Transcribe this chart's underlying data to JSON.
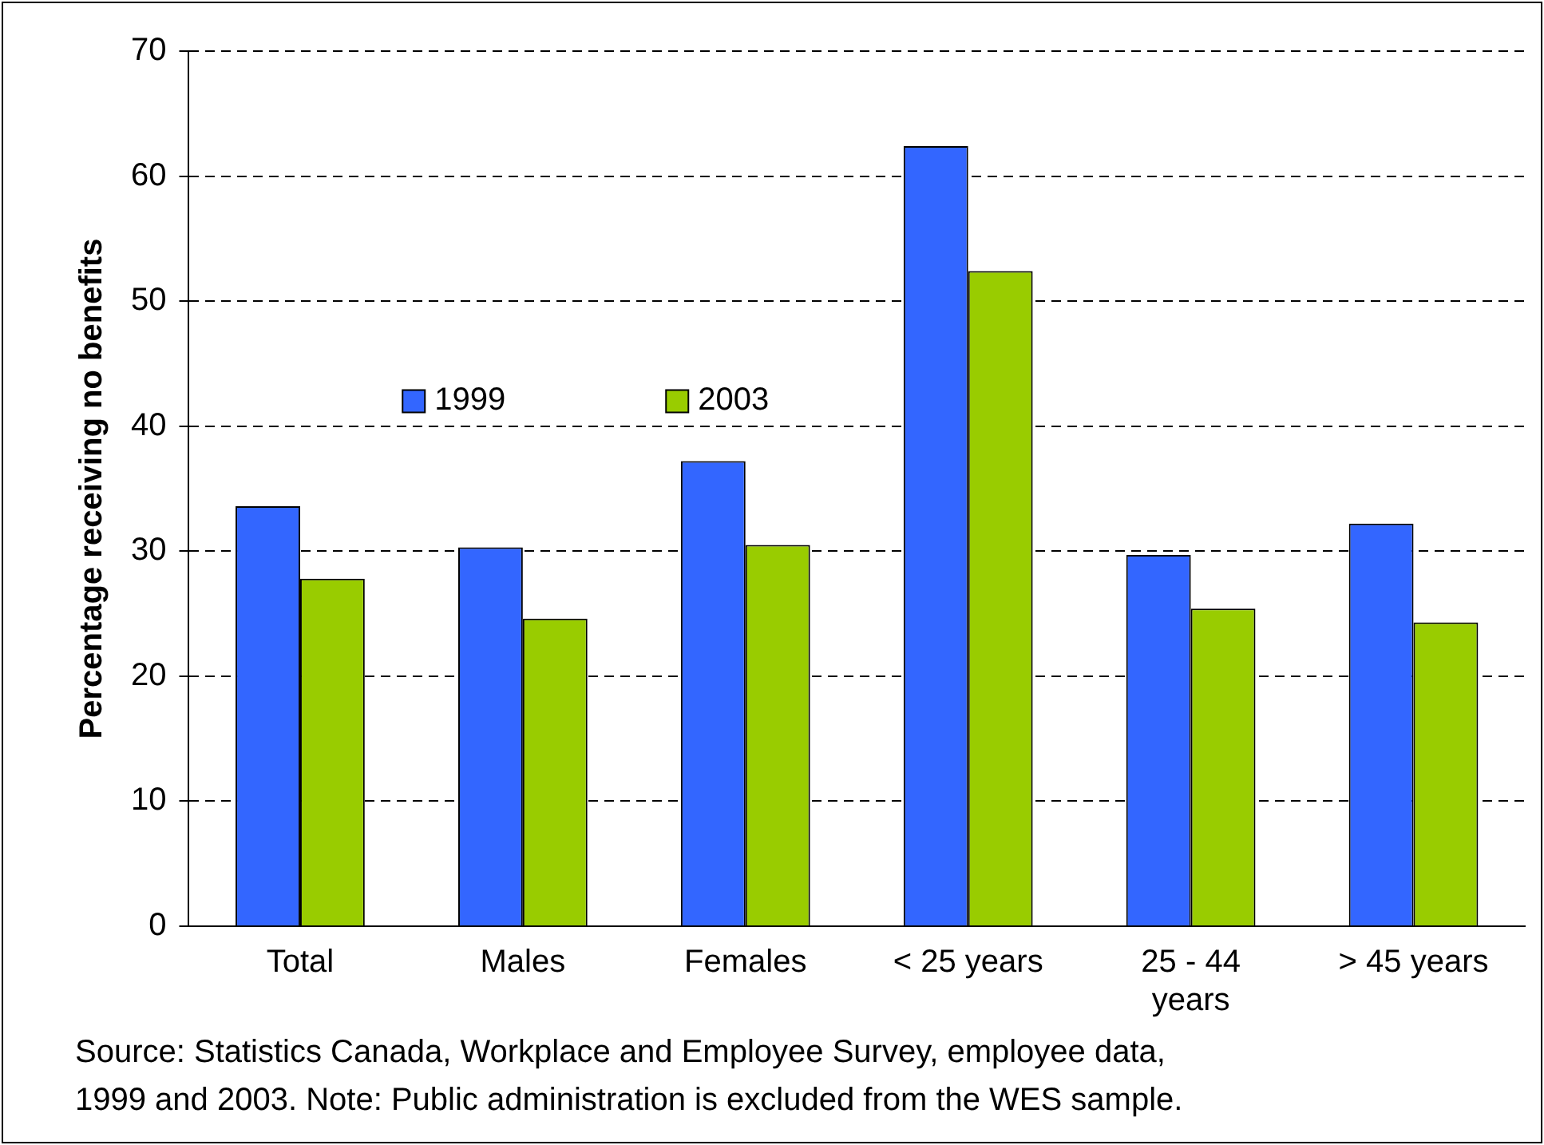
{
  "chart_data": {
    "type": "bar",
    "ylabel": "Percentage receiving no benefits",
    "categories": [
      "Total",
      "Males",
      "Females",
      "< 25 years",
      "25 - 44 years",
      "> 45 years"
    ],
    "series": [
      {
        "name": "1999",
        "color": "#3366ff",
        "values": [
          33.6,
          30.3,
          37.2,
          62.4,
          29.7,
          32.2
        ]
      },
      {
        "name": "2003",
        "color": "#99cc00",
        "values": [
          27.8,
          24.6,
          30.5,
          52.4,
          25.4,
          24.3
        ]
      }
    ],
    "ylim": [
      0,
      70
    ],
    "yticks": [
      0,
      10,
      20,
      30,
      40,
      50,
      60,
      70
    ],
    "grid": "y",
    "legend": "left",
    "annotations": [
      "Source: Statistics Canada, Workplace and Employee Survey, employee data, 1999 and 2003. Note: Public administration is excluded from the WES sample."
    ]
  }
}
